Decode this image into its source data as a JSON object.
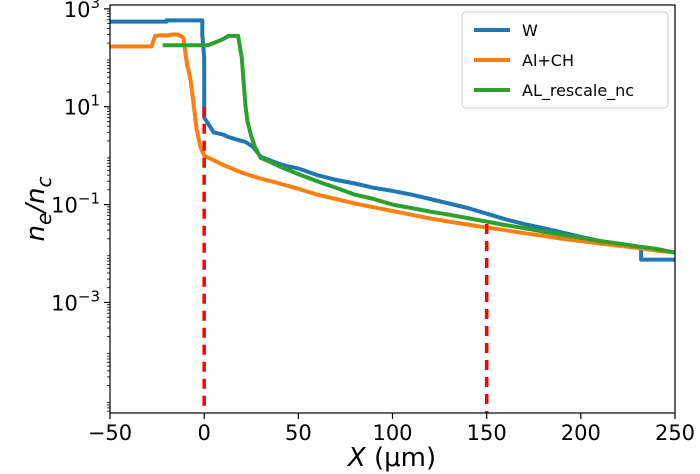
{
  "chart_data": {
    "type": "line",
    "title": "",
    "xlabel": "X (μm)",
    "ylabel": "n_e/n_c",
    "xlim": [
      -50,
      250
    ],
    "ylim": [
      5.5e-06,
      1200
    ],
    "yscale": "log",
    "grid": false,
    "legend_position": "top-right",
    "x_ticks": [
      -50,
      0,
      50,
      100,
      150,
      200,
      250
    ],
    "x_tick_labels": [
      "−50",
      "0",
      "50",
      "100",
      "150",
      "200",
      "250"
    ],
    "y_ticks": [
      {
        "value": 1000,
        "base": "10",
        "exp": "3"
      },
      {
        "value": 10,
        "base": "10",
        "exp": "1"
      },
      {
        "value": 0.1,
        "base": "10",
        "exp": "−1"
      },
      {
        "value": 0.001,
        "base": "10",
        "exp": "−3"
      }
    ],
    "series": [
      {
        "name": "W",
        "color": "#1f77b4",
        "x": [
          -50,
          -20,
          -20,
          -1,
          -1,
          0,
          0,
          3,
          5,
          10,
          13,
          18,
          22,
          26,
          30,
          35,
          40,
          45,
          50,
          60,
          70,
          80,
          90,
          100,
          110,
          120,
          130,
          140,
          150,
          160,
          170,
          180,
          190,
          200,
          210,
          220,
          232,
          232,
          250
        ],
        "y": [
          550,
          550,
          580,
          580,
          300,
          100,
          6,
          4,
          3,
          2.7,
          2.4,
          2.1,
          1.9,
          1.5,
          0.95,
          0.8,
          0.68,
          0.6,
          0.55,
          0.4,
          0.32,
          0.27,
          0.22,
          0.19,
          0.16,
          0.13,
          0.105,
          0.085,
          0.065,
          0.05,
          0.04,
          0.033,
          0.027,
          0.022,
          0.018,
          0.015,
          0.013,
          0.0075,
          0.0075
        ]
      },
      {
        "name": "Al+CH",
        "color": "#ff7f0e",
        "x": [
          -50,
          -28,
          -26,
          -23,
          -20,
          -17,
          -14,
          -11,
          -10,
          -9,
          -8,
          -7,
          -6,
          -5,
          -4,
          -2,
          0,
          10,
          20,
          30,
          40,
          50,
          60,
          70,
          80,
          90,
          100,
          110,
          120,
          130,
          140,
          150,
          160,
          170,
          180,
          190,
          200,
          210,
          220,
          230,
          240,
          250
        ],
        "y": [
          170,
          170,
          280,
          290,
          285,
          300,
          300,
          260,
          130,
          70,
          50,
          30,
          15,
          7,
          3.5,
          1.5,
          1.0,
          0.65,
          0.45,
          0.34,
          0.27,
          0.21,
          0.16,
          0.13,
          0.105,
          0.088,
          0.074,
          0.062,
          0.052,
          0.045,
          0.039,
          0.034,
          0.03,
          0.026,
          0.023,
          0.02,
          0.018,
          0.016,
          0.0145,
          0.013,
          0.0115,
          0.0105
        ]
      },
      {
        "name": "AL_rescale_nc",
        "color": "#2ca02c",
        "x": [
          -22,
          2,
          5,
          10,
          13,
          18,
          20,
          21,
          22,
          23,
          25,
          27,
          30,
          35,
          40,
          50,
          60,
          70,
          80,
          90,
          100,
          110,
          120,
          130,
          140,
          150,
          160,
          170,
          180,
          190,
          200,
          210,
          220,
          230,
          240,
          250
        ],
        "y": [
          180,
          180,
          200,
          240,
          280,
          280,
          100,
          30,
          10,
          5,
          2.5,
          1.5,
          0.9,
          0.75,
          0.6,
          0.42,
          0.3,
          0.22,
          0.16,
          0.13,
          0.1,
          0.085,
          0.072,
          0.062,
          0.053,
          0.045,
          0.038,
          0.033,
          0.028,
          0.024,
          0.021,
          0.018,
          0.016,
          0.014,
          0.0125,
          0.0105
        ]
      }
    ],
    "annotations": [
      {
        "type": "dashed-vertical",
        "x": 0,
        "y_top": 10,
        "color": "#ff0000"
      },
      {
        "type": "dashed-vertical",
        "x": 150,
        "y_top": 0.04,
        "color": "#ff0000"
      }
    ]
  }
}
